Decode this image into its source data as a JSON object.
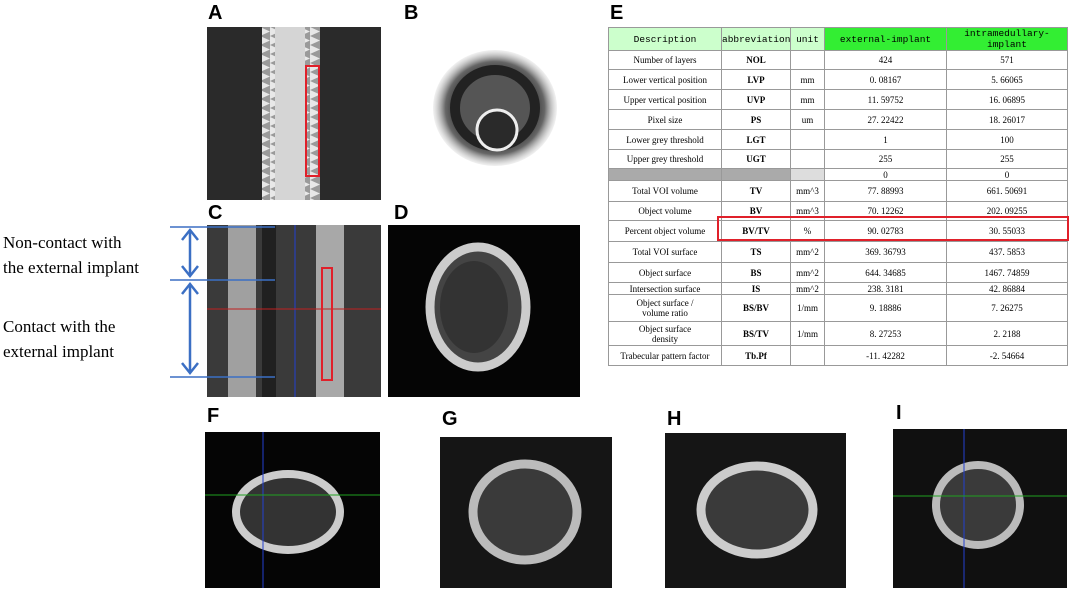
{
  "panel_labels": [
    "A",
    "B",
    "C",
    "D",
    "E",
    "F",
    "G",
    "H",
    "I"
  ],
  "annotations": {
    "non_contact": [
      "Non-contact with",
      "the external implant"
    ],
    "contact": [
      "Contact with the",
      "external implant"
    ]
  },
  "table": {
    "header": [
      "Description",
      "abbreviation",
      "unit",
      "external-implant",
      "intramedullary-implant"
    ],
    "rows": [
      {
        "description": "Number of layers",
        "abbreviation": "NOL",
        "external": "424",
        "intramedullary": "571"
      },
      {
        "description": "Lower vertical position",
        "abbreviation": "LVP",
        "unit": "mm",
        "external": "0. 08167",
        "intramedullary": "5. 66065"
      },
      {
        "description": "Upper vertical position",
        "abbreviation": "UVP",
        "unit": "mm",
        "external": "11. 59752",
        "intramedullary": "16. 06895"
      },
      {
        "description": "Pixel size",
        "abbreviation": "PS",
        "unit": "um",
        "external": "27. 22422",
        "intramedullary": "18. 26017"
      },
      {
        "description": "Lower grey threshold",
        "abbreviation": "LGT",
        "external": "1",
        "intramedullary": "100"
      },
      {
        "description": "Upper grey threshold",
        "abbreviation": "UGT",
        "external": "255",
        "intramedullary": "255"
      }
    ],
    "separator_row": [
      "0",
      "0"
    ],
    "rows2": [
      {
        "description": "Total VOI volume",
        "abbreviation": "TV",
        "unit": "mm^3",
        "external": "77. 88993",
        "intramedullary": "661. 50691"
      },
      {
        "description": "Object volume",
        "abbreviation": "BV",
        "unit": "mm^3",
        "external": "70. 12262",
        "intramedullary": "202. 09255"
      },
      {
        "description": "Percent object volume",
        "abbreviation": "BV/TV",
        "unit": "%",
        "external": "90. 02783",
        "intramedullary": "30. 55033"
      },
      {
        "description": "Total VOI surface",
        "abbreviation": "TS",
        "unit": "mm^2",
        "external": "369. 36793",
        "intramedullary": "437. 5853"
      },
      {
        "description": "Object surface",
        "abbreviation": "BS",
        "unit": "mm^2",
        "external": "644. 34685",
        "intramedullary": "1467. 74859"
      },
      {
        "description": "Intersection surface",
        "abbreviation": "IS",
        "unit": "mm^2",
        "external": "238. 3181",
        "intramedullary": "42. 86884"
      },
      {
        "description": "Object surface /\nvolume ratio",
        "abbreviation": "BS/BV",
        "unit": "1/mm",
        "external": "9. 18886",
        "intramedullary": "7. 26275"
      },
      {
        "description": "Object surface\ndensity",
        "abbreviation": "BS/TV",
        "unit": "1/mm",
        "external": "8. 27253",
        "intramedullary": "2. 2188"
      },
      {
        "description": "Trabecular pattern factor",
        "abbreviation": "Tb.Pf",
        "external": "-11. 42282",
        "intramedullary": "-2. 54664"
      }
    ]
  }
}
